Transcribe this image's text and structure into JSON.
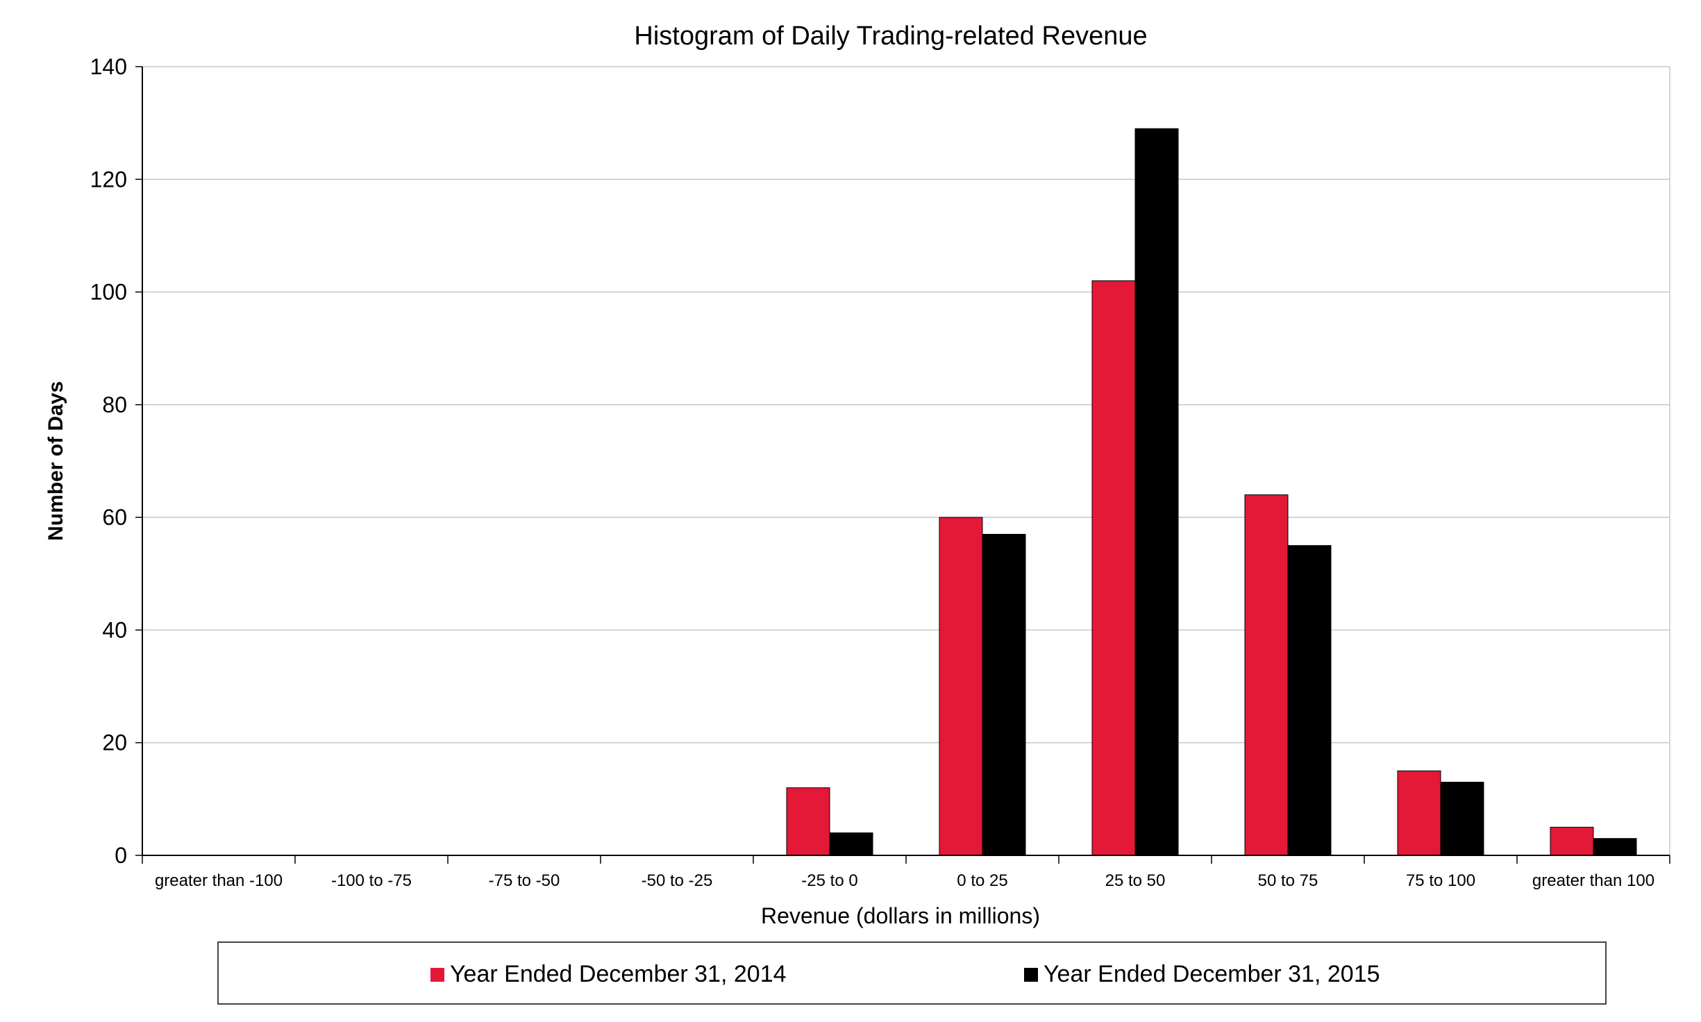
{
  "chart_data": {
    "type": "bar",
    "title": "Histogram of Daily Trading-related Revenue",
    "xlabel": "Revenue (dollars in millions)",
    "ylabel": "Number of Days",
    "ylim": [
      0,
      140
    ],
    "yticks": [
      0,
      20,
      40,
      60,
      80,
      100,
      120,
      140
    ],
    "grid": true,
    "legend_position": "bottom",
    "categories": [
      "greater than -100",
      "-100 to -75",
      "-75 to -50",
      "-50 to -25",
      "-25 to 0",
      "0 to 25",
      "25 to 50",
      "50 to 75",
      "75 to 100",
      "greater than 100"
    ],
    "series": [
      {
        "name": "Year Ended December 31, 2014",
        "color": "#e31937",
        "values": [
          0,
          0,
          0,
          0,
          12,
          60,
          102,
          64,
          15,
          5
        ]
      },
      {
        "name": "Year Ended December 31, 2015",
        "color": "#000000",
        "values": [
          0,
          0,
          0,
          0,
          4,
          57,
          129,
          55,
          13,
          3
        ]
      }
    ]
  }
}
